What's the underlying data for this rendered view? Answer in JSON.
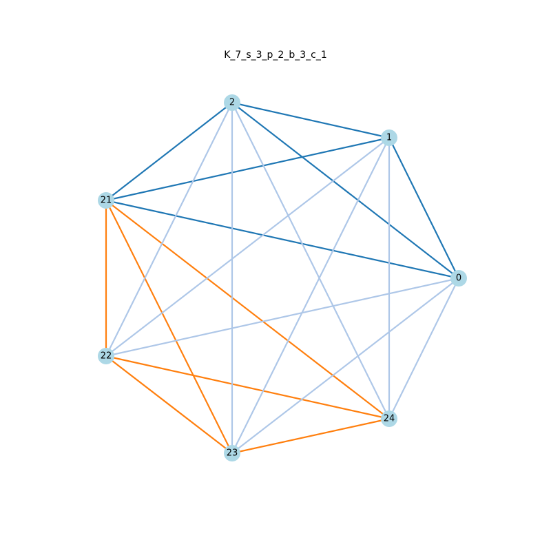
{
  "title": "K_7_s_3_p_2_b_3_c_1",
  "colors": {
    "node_fill": "#add8e6",
    "group_a": "#1f77b4",
    "group_b": "#ff7f0e",
    "cross": "#aec7e8"
  },
  "nodes": [
    "0",
    "1",
    "2",
    "21",
    "22",
    "23",
    "24"
  ],
  "edges": [
    {
      "source": "2",
      "target": "1",
      "group": "group_a"
    },
    {
      "source": "2",
      "target": "0",
      "group": "group_a"
    },
    {
      "source": "2",
      "target": "21",
      "group": "group_a"
    },
    {
      "source": "1",
      "target": "0",
      "group": "group_a"
    },
    {
      "source": "1",
      "target": "21",
      "group": "group_a"
    },
    {
      "source": "21",
      "target": "0",
      "group": "group_a"
    },
    {
      "source": "21",
      "target": "22",
      "group": "group_b"
    },
    {
      "source": "21",
      "target": "23",
      "group": "group_b"
    },
    {
      "source": "21",
      "target": "24",
      "group": "group_b"
    },
    {
      "source": "22",
      "target": "23",
      "group": "group_b"
    },
    {
      "source": "22",
      "target": "24",
      "group": "group_b"
    },
    {
      "source": "23",
      "target": "24",
      "group": "group_b"
    },
    {
      "source": "2",
      "target": "22",
      "group": "cross"
    },
    {
      "source": "2",
      "target": "23",
      "group": "cross"
    },
    {
      "source": "2",
      "target": "24",
      "group": "cross"
    },
    {
      "source": "1",
      "target": "22",
      "group": "cross"
    },
    {
      "source": "1",
      "target": "23",
      "group": "cross"
    },
    {
      "source": "1",
      "target": "24",
      "group": "cross"
    },
    {
      "source": "0",
      "target": "22",
      "group": "cross"
    },
    {
      "source": "0",
      "target": "23",
      "group": "cross"
    },
    {
      "source": "0",
      "target": "24",
      "group": "cross"
    }
  ]
}
